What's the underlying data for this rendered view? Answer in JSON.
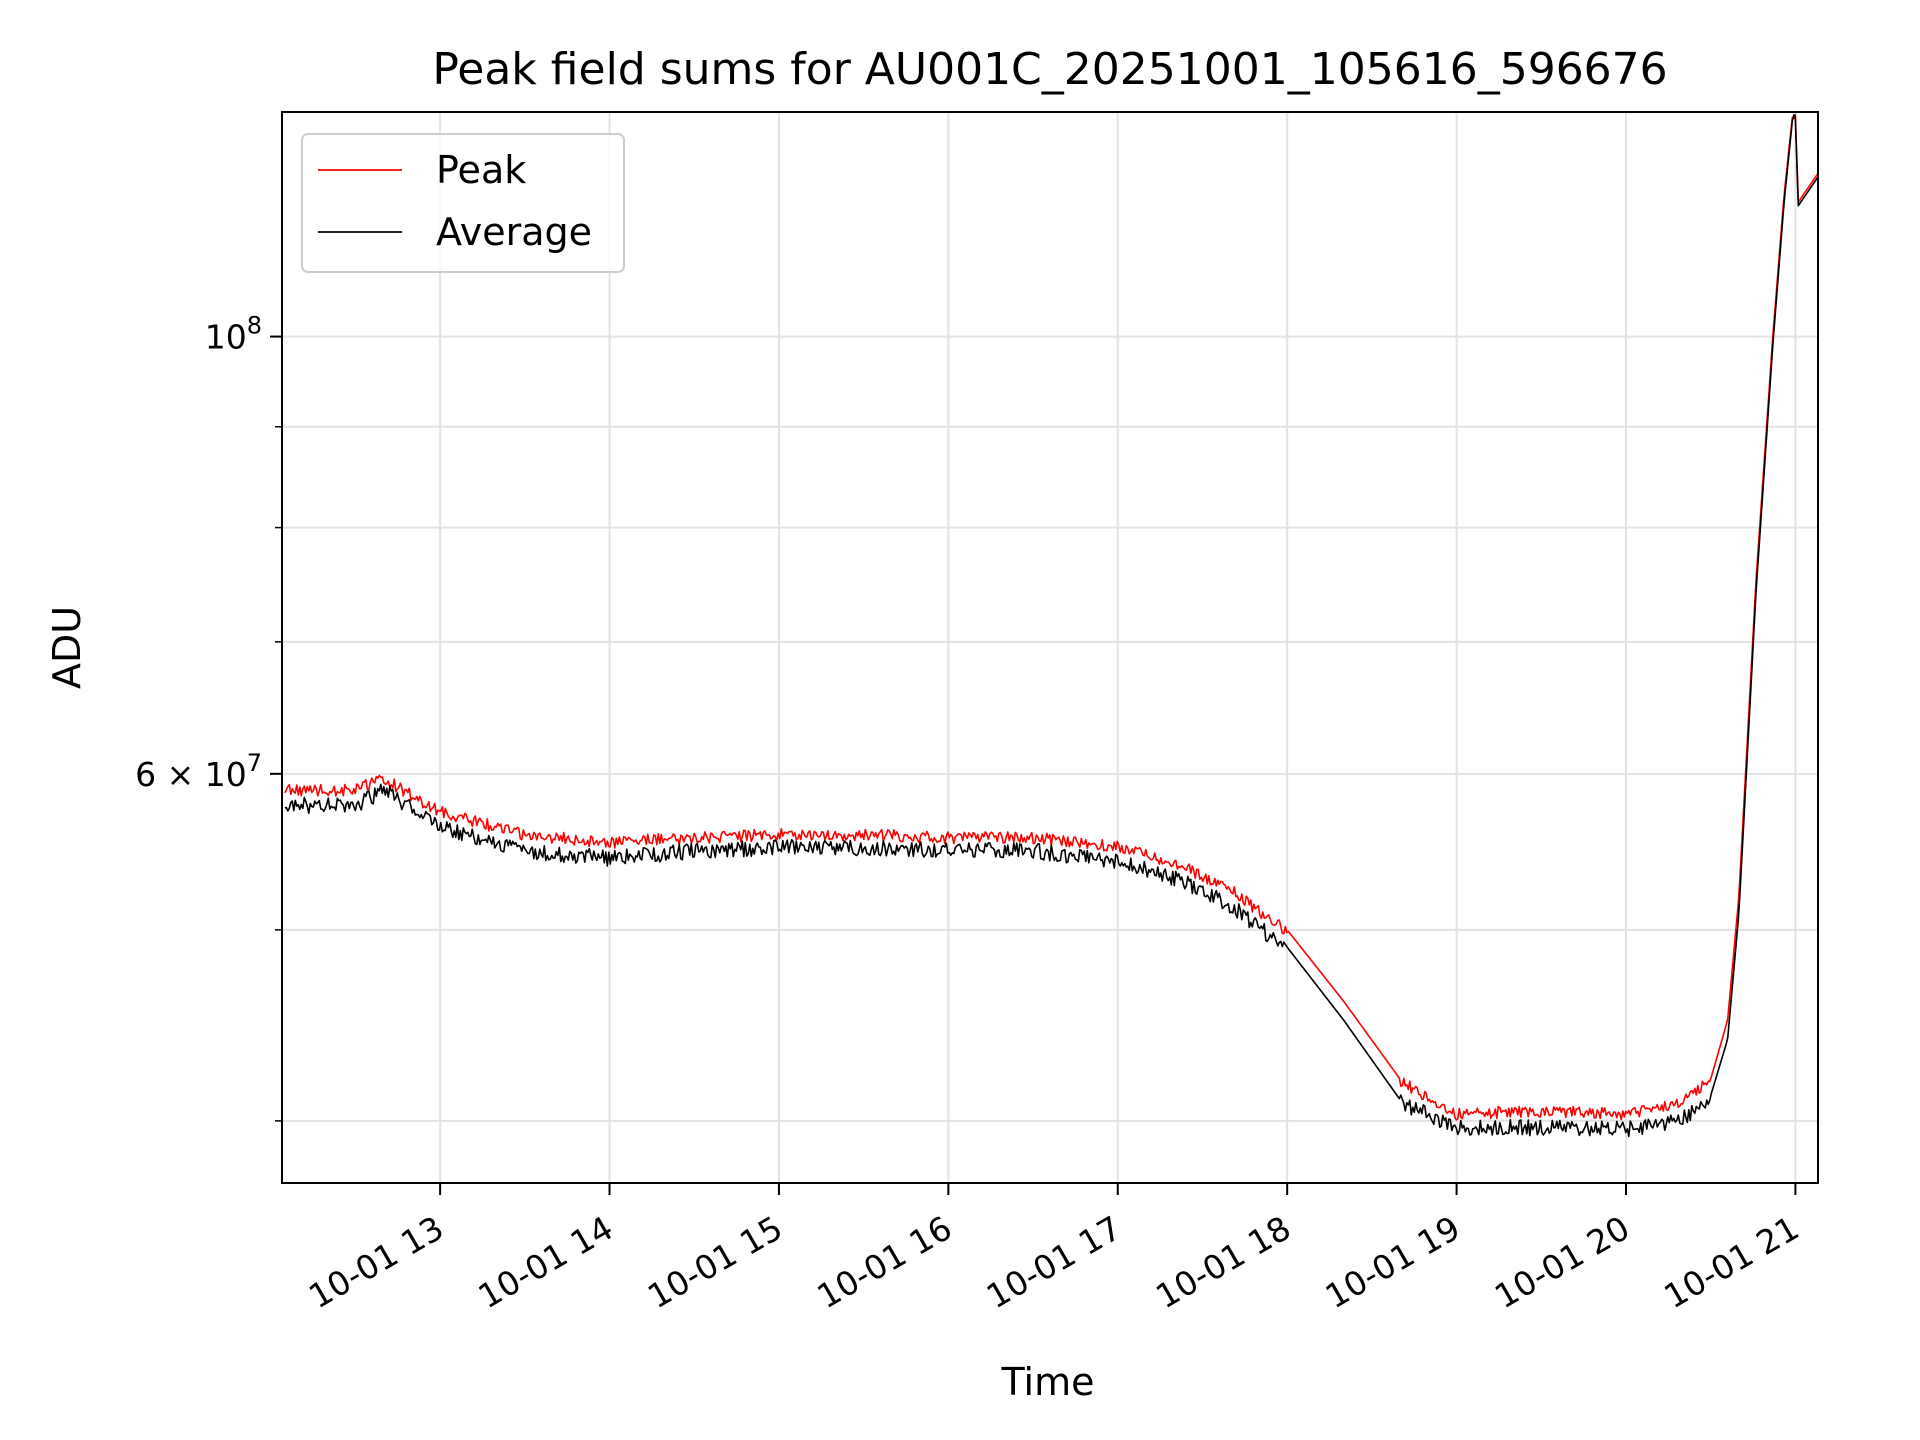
{
  "chart_data": {
    "type": "line",
    "title": "Peak field sums for AU001C_20251001_105616_596676",
    "xlabel": "Time",
    "ylabel": "ADU",
    "x_ticks": [
      "10-01 13",
      "10-01 14",
      "10-01 15",
      "10-01 16",
      "10-01 17",
      "10-01 18",
      "10-01 19",
      "10-01 20",
      "10-01 21"
    ],
    "y_scale": "log",
    "y_ticks": [
      {
        "value": 100000000,
        "mantissa": "10",
        "exp": "8"
      },
      {
        "value": 60000000,
        "mantissa": "6 × 10",
        "exp": "7"
      }
    ],
    "y_minor_ticks": [
      40000000,
      50000000,
      60000000,
      70000000,
      80000000,
      90000000,
      100000000
    ],
    "xlim": [
      "2025-10-01 12:04",
      "2025-10-01 21:08"
    ],
    "ylim": [
      37200000,
      130000000
    ],
    "grid": true,
    "legend": {
      "position": "top-left"
    },
    "series": [
      {
        "name": "Peak",
        "color": "#ff0000",
        "x": [
          "2025-10-01 12:05",
          "2025-10-01 12:30",
          "2025-10-01 12:40",
          "2025-10-01 13:00",
          "2025-10-01 13:30",
          "2025-10-01 14:00",
          "2025-10-01 14:30",
          "2025-10-01 15:00",
          "2025-10-01 15:30",
          "2025-10-01 16:00",
          "2025-10-01 16:30",
          "2025-10-01 17:00",
          "2025-10-01 17:20",
          "2025-10-01 17:40",
          "2025-10-01 18:00",
          "2025-10-01 18:20",
          "2025-10-01 18:40",
          "2025-10-01 19:00",
          "2025-10-01 19:20",
          "2025-10-01 19:40",
          "2025-10-01 20:00",
          "2025-10-01 20:20",
          "2025-10-01 20:30",
          "2025-10-01 20:36",
          "2025-10-01 20:40",
          "2025-10-01 20:46",
          "2025-10-01 20:52",
          "2025-10-01 20:56",
          "2025-10-01 20:59",
          "2025-10-01 21:00",
          "2025-10-01 21:01",
          "2025-10-01 21:08"
        ],
        "y": [
          59000000,
          59000000,
          59800000,
          57500000,
          56000000,
          55500000,
          55800000,
          56000000,
          56000000,
          55800000,
          55800000,
          55200000,
          54200000,
          52500000,
          50000000,
          46000000,
          42000000,
          40400000,
          40500000,
          40500000,
          40400000,
          41000000,
          42000000,
          45000000,
          52000000,
          75000000,
          100000000,
          118000000,
          129500000,
          129800000,
          117000000,
          121000000
        ]
      },
      {
        "name": "Average",
        "color": "#000000",
        "x": [
          "2025-10-01 12:05",
          "2025-10-01 12:30",
          "2025-10-01 12:40",
          "2025-10-01 13:00",
          "2025-10-01 13:30",
          "2025-10-01 14:00",
          "2025-10-01 14:30",
          "2025-10-01 15:00",
          "2025-10-01 15:30",
          "2025-10-01 16:00",
          "2025-10-01 16:30",
          "2025-10-01 17:00",
          "2025-10-01 17:20",
          "2025-10-01 17:40",
          "2025-10-01 18:00",
          "2025-10-01 18:20",
          "2025-10-01 18:40",
          "2025-10-01 19:00",
          "2025-10-01 19:20",
          "2025-10-01 19:40",
          "2025-10-01 20:00",
          "2025-10-01 20:20",
          "2025-10-01 20:30",
          "2025-10-01 20:36",
          "2025-10-01 20:40",
          "2025-10-01 20:46",
          "2025-10-01 20:52",
          "2025-10-01 20:56",
          "2025-10-01 20:59",
          "2025-10-01 21:00",
          "2025-10-01 21:01",
          "2025-10-01 21:08"
        ],
        "y": [
          58000000,
          58000000,
          59000000,
          56500000,
          55000000,
          54500000,
          55000000,
          55200000,
          55200000,
          55000000,
          55000000,
          54300000,
          53300000,
          51600000,
          49000000,
          45000000,
          41000000,
          39800000,
          39800000,
          39800000,
          39700000,
          40200000,
          41200000,
          44000000,
          51000000,
          74000000,
          99000000,
          117000000,
          129000000,
          129300000,
          116500000,
          120500000
        ]
      }
    ]
  }
}
